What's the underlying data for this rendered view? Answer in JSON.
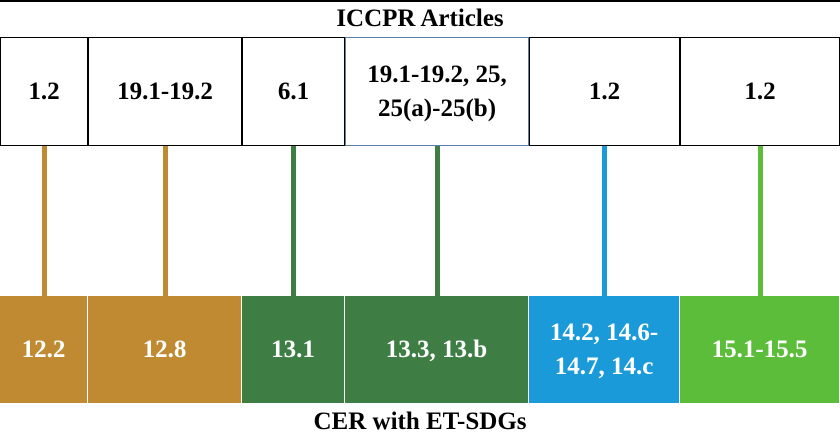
{
  "header": {
    "title": "ICCPR Articles"
  },
  "columns": [
    {
      "article_lines": [
        "1.2"
      ],
      "sdg_lines": [
        "12.2"
      ]
    },
    {
      "article_lines": [
        "19.1-19.2"
      ],
      "sdg_lines": [
        "12.8"
      ]
    },
    {
      "article_lines": [
        "6.1"
      ],
      "sdg_lines": [
        "13.1"
      ]
    },
    {
      "article_lines": [
        "19.1-19.2, 25,",
        "25(a)-25(b)"
      ],
      "sdg_lines": [
        "13.3, 13.b"
      ]
    },
    {
      "article_lines": [
        "1.2"
      ],
      "sdg_lines": [
        "14.2, 14.6-",
        "14.7, 14.c"
      ]
    },
    {
      "article_lines": [
        "1.2"
      ],
      "sdg_lines": [
        "15.1-15.5"
      ]
    }
  ],
  "footer": {
    "title": "CER with ET-SDGs"
  }
}
